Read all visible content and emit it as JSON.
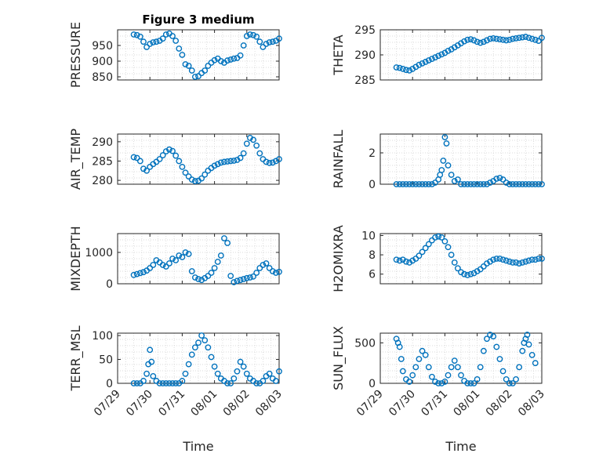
{
  "chart_data": [
    {
      "type": "scatter",
      "title": "Figure 3 medium",
      "ylabel": "PRESSURE",
      "ylim": [
        840,
        1000
      ],
      "yticks": [
        850,
        900,
        950
      ],
      "grid": true,
      "marker_color": "#0072BD",
      "series": [
        {
          "x": [
            0.5,
            0.6,
            0.7,
            0.8,
            0.9,
            1.0,
            1.1,
            1.2,
            1.3,
            1.4,
            1.5,
            1.6,
            1.7,
            1.8,
            1.9,
            2.0,
            2.1,
            2.2,
            2.3,
            2.4,
            2.5,
            2.6,
            2.7,
            2.8,
            2.9,
            3.0,
            3.1,
            3.2,
            3.3,
            3.4,
            3.5,
            3.6,
            3.7,
            3.8,
            3.9,
            4.0,
            4.1,
            4.2,
            4.3,
            4.4,
            4.5,
            4.6,
            4.7,
            4.8,
            4.9,
            5.0
          ],
          "y": [
            985,
            983,
            978,
            962,
            945,
            955,
            960,
            962,
            965,
            972,
            985,
            988,
            980,
            965,
            940,
            920,
            890,
            885,
            870,
            850,
            852,
            862,
            870,
            885,
            895,
            903,
            908,
            900,
            895,
            902,
            905,
            908,
            910,
            918,
            950,
            980,
            985,
            983,
            978,
            962,
            945,
            955,
            960,
            962,
            965,
            972
          ]
        }
      ]
    },
    {
      "type": "scatter",
      "ylabel": "THETA",
      "ylim": [
        285,
        295
      ],
      "yticks": [
        285,
        290,
        295
      ],
      "grid": true,
      "marker_color": "#0072BD",
      "series": [
        {
          "x": [
            0.5,
            0.6,
            0.7,
            0.8,
            0.9,
            1.0,
            1.1,
            1.2,
            1.3,
            1.4,
            1.5,
            1.6,
            1.7,
            1.8,
            1.9,
            2.0,
            2.1,
            2.2,
            2.3,
            2.4,
            2.5,
            2.6,
            2.7,
            2.8,
            2.9,
            3.0,
            3.1,
            3.2,
            3.3,
            3.4,
            3.5,
            3.6,
            3.7,
            3.8,
            3.9,
            4.0,
            4.1,
            4.2,
            4.3,
            4.4,
            4.5,
            4.6,
            4.7,
            4.8,
            4.9,
            5.0
          ],
          "y": [
            287.5,
            287.4,
            287.2,
            287.0,
            286.9,
            287.2,
            287.6,
            288.0,
            288.3,
            288.6,
            288.9,
            289.2,
            289.5,
            289.8,
            290.1,
            290.4,
            290.8,
            291.1,
            291.5,
            291.9,
            292.3,
            292.7,
            293.0,
            293.1,
            292.9,
            292.6,
            292.4,
            292.6,
            292.9,
            293.2,
            293.3,
            293.2,
            293.1,
            293.0,
            292.9,
            293.0,
            293.2,
            293.3,
            293.4,
            293.5,
            293.6,
            293.4,
            293.2,
            293.0,
            292.8,
            293.4
          ]
        }
      ]
    },
    {
      "type": "scatter",
      "ylabel": "AIR_TEMP",
      "ylim": [
        279,
        292
      ],
      "yticks": [
        280,
        285,
        290
      ],
      "grid": true,
      "marker_color": "#0072BD",
      "series": [
        {
          "x": [
            0.5,
            0.6,
            0.7,
            0.8,
            0.9,
            1.0,
            1.1,
            1.2,
            1.3,
            1.4,
            1.5,
            1.6,
            1.7,
            1.8,
            1.9,
            2.0,
            2.1,
            2.2,
            2.3,
            2.4,
            2.5,
            2.6,
            2.7,
            2.8,
            2.9,
            3.0,
            3.1,
            3.2,
            3.3,
            3.4,
            3.5,
            3.6,
            3.7,
            3.8,
            3.9,
            4.0,
            4.1,
            4.2,
            4.3,
            4.4,
            4.5,
            4.6,
            4.7,
            4.8,
            4.9,
            5.0
          ],
          "y": [
            286,
            285.8,
            285,
            283,
            282.5,
            283.5,
            284.2,
            284.8,
            285.5,
            286.5,
            287.5,
            288,
            287.6,
            286.4,
            285,
            283.5,
            282,
            281,
            280.2,
            279.8,
            279.9,
            280.5,
            281.5,
            282.5,
            283.2,
            283.8,
            284.2,
            284.6,
            284.8,
            284.9,
            285,
            285.1,
            285.3,
            285.8,
            287,
            289.5,
            291,
            290.5,
            289,
            287,
            285.5,
            284.8,
            284.5,
            284.6,
            285,
            285.5
          ]
        }
      ]
    },
    {
      "type": "scatter",
      "ylabel": "RAINFALL",
      "ylim": [
        0,
        3.2
      ],
      "yticks": [
        0,
        2
      ],
      "grid": true,
      "marker_color": "#0072BD",
      "series": [
        {
          "x": [
            0.5,
            0.6,
            0.7,
            0.8,
            0.9,
            1.0,
            1.1,
            1.2,
            1.3,
            1.4,
            1.5,
            1.6,
            1.7,
            1.8,
            1.85,
            1.9,
            1.95,
            2.0,
            2.05,
            2.1,
            2.2,
            2.3,
            2.4,
            2.5,
            2.6,
            2.7,
            2.8,
            2.9,
            3.0,
            3.1,
            3.2,
            3.3,
            3.4,
            3.5,
            3.6,
            3.7,
            3.8,
            3.9,
            4.0,
            4.1,
            4.2,
            4.3,
            4.4,
            4.5,
            4.6,
            4.7,
            4.8,
            4.9,
            5.0
          ],
          "y": [
            0,
            0,
            0,
            0,
            0,
            0,
            0,
            0,
            0,
            0,
            0,
            0,
            0.1,
            0.3,
            0.6,
            0.9,
            1.5,
            3.0,
            2.6,
            1.2,
            0.6,
            0.2,
            0.3,
            0,
            0,
            0,
            0,
            0,
            0,
            0,
            0,
            0,
            0.1,
            0.2,
            0.35,
            0.4,
            0.3,
            0.1,
            0,
            0,
            0,
            0,
            0,
            0,
            0,
            0,
            0,
            0,
            0
          ]
        }
      ]
    },
    {
      "type": "scatter",
      "ylabel": "MIXDEPTH",
      "ylim": [
        0,
        1600
      ],
      "yticks": [
        0,
        1000
      ],
      "grid": true,
      "marker_color": "#0072BD",
      "series": [
        {
          "x": [
            0.5,
            0.6,
            0.7,
            0.8,
            0.9,
            1.0,
            1.1,
            1.2,
            1.3,
            1.4,
            1.5,
            1.6,
            1.7,
            1.8,
            1.9,
            2.0,
            2.1,
            2.2,
            2.3,
            2.4,
            2.5,
            2.6,
            2.7,
            2.8,
            2.9,
            3.0,
            3.1,
            3.2,
            3.3,
            3.4,
            3.5,
            3.6,
            3.7,
            3.8,
            3.9,
            4.0,
            4.1,
            4.2,
            4.3,
            4.4,
            4.5,
            4.6,
            4.7,
            4.8,
            4.9,
            5.0
          ],
          "y": [
            280,
            310,
            340,
            370,
            420,
            500,
            600,
            750,
            680,
            600,
            550,
            650,
            800,
            750,
            900,
            850,
            1000,
            950,
            400,
            200,
            150,
            120,
            180,
            250,
            350,
            500,
            700,
            900,
            1450,
            1300,
            250,
            50,
            90,
            120,
            150,
            180,
            200,
            230,
            350,
            500,
            600,
            650,
            500,
            400,
            350,
            380
          ]
        }
      ]
    },
    {
      "type": "scatter",
      "ylabel": "H2OMIXRA",
      "ylim": [
        5,
        10.2
      ],
      "yticks": [
        6,
        8,
        10
      ],
      "grid": true,
      "marker_color": "#0072BD",
      "series": [
        {
          "x": [
            0.5,
            0.6,
            0.7,
            0.8,
            0.9,
            1.0,
            1.1,
            1.2,
            1.3,
            1.4,
            1.5,
            1.6,
            1.7,
            1.8,
            1.9,
            2.0,
            2.1,
            2.2,
            2.3,
            2.4,
            2.5,
            2.6,
            2.7,
            2.8,
            2.9,
            3.0,
            3.1,
            3.2,
            3.3,
            3.4,
            3.5,
            3.6,
            3.7,
            3.8,
            3.9,
            4.0,
            4.1,
            4.2,
            4.3,
            4.4,
            4.5,
            4.6,
            4.7,
            4.8,
            4.9,
            5.0
          ],
          "y": [
            7.5,
            7.4,
            7.5,
            7.3,
            7.2,
            7.4,
            7.6,
            7.9,
            8.3,
            8.7,
            9.1,
            9.5,
            9.8,
            9.9,
            9.8,
            9.4,
            8.8,
            8.0,
            7.2,
            6.6,
            6.2,
            6.0,
            5.9,
            6.0,
            6.1,
            6.3,
            6.5,
            6.8,
            7.1,
            7.3,
            7.5,
            7.6,
            7.6,
            7.5,
            7.4,
            7.3,
            7.2,
            7.2,
            7.1,
            7.2,
            7.3,
            7.4,
            7.5,
            7.5,
            7.6,
            7.6
          ]
        }
      ]
    },
    {
      "type": "scatter",
      "ylabel": "TERR_MSL",
      "ylim": [
        0,
        105
      ],
      "yticks": [
        0,
        50,
        100
      ],
      "grid": true,
      "marker_color": "#0072BD",
      "series": [
        {
          "x": [
            0.5,
            0.6,
            0.7,
            0.8,
            0.9,
            0.95,
            1.0,
            1.05,
            1.1,
            1.2,
            1.3,
            1.4,
            1.5,
            1.6,
            1.7,
            1.8,
            1.9,
            2.0,
            2.1,
            2.2,
            2.3,
            2.4,
            2.5,
            2.6,
            2.7,
            2.8,
            2.9,
            3.0,
            3.1,
            3.2,
            3.3,
            3.4,
            3.5,
            3.6,
            3.7,
            3.8,
            3.9,
            4.0,
            4.1,
            4.2,
            4.3,
            4.4,
            4.5,
            4.6,
            4.7,
            4.8,
            4.9,
            5.0
          ],
          "y": [
            0,
            0,
            0,
            5,
            20,
            40,
            70,
            45,
            15,
            5,
            0,
            0,
            0,
            0,
            0,
            0,
            0,
            5,
            20,
            40,
            60,
            75,
            85,
            100,
            90,
            75,
            55,
            35,
            20,
            10,
            5,
            0,
            0,
            10,
            25,
            45,
            35,
            20,
            10,
            5,
            0,
            0,
            5,
            15,
            20,
            10,
            5,
            25
          ]
        }
      ]
    },
    {
      "type": "scatter",
      "ylabel": "SUN_FLUX",
      "ylim": [
        0,
        620
      ],
      "yticks": [
        0,
        500
      ],
      "grid": true,
      "marker_color": "#0072BD",
      "series": [
        {
          "x": [
            0.5,
            0.55,
            0.6,
            0.65,
            0.7,
            0.8,
            0.9,
            1.0,
            1.1,
            1.2,
            1.3,
            1.4,
            1.5,
            1.6,
            1.7,
            1.8,
            1.9,
            2.0,
            2.1,
            2.2,
            2.3,
            2.4,
            2.5,
            2.6,
            2.7,
            2.8,
            2.9,
            3.0,
            3.1,
            3.2,
            3.3,
            3.4,
            3.5,
            3.6,
            3.7,
            3.8,
            3.9,
            4.0,
            4.1,
            4.2,
            4.3,
            4.4,
            4.45,
            4.5,
            4.55,
            4.6,
            4.7,
            4.8
          ],
          "y": [
            550,
            500,
            450,
            300,
            150,
            50,
            20,
            100,
            200,
            300,
            400,
            350,
            200,
            80,
            20,
            0,
            0,
            20,
            100,
            200,
            280,
            200,
            100,
            30,
            0,
            0,
            0,
            50,
            200,
            400,
            550,
            600,
            580,
            450,
            300,
            150,
            50,
            0,
            0,
            50,
            200,
            400,
            500,
            550,
            600,
            480,
            350,
            250
          ]
        }
      ]
    }
  ],
  "x_axis": {
    "label": "Time",
    "tick_labels": [
      "07/29",
      "07/30",
      "07/31",
      "08/01",
      "08/02",
      "08/03"
    ],
    "range": [
      0,
      5
    ]
  }
}
